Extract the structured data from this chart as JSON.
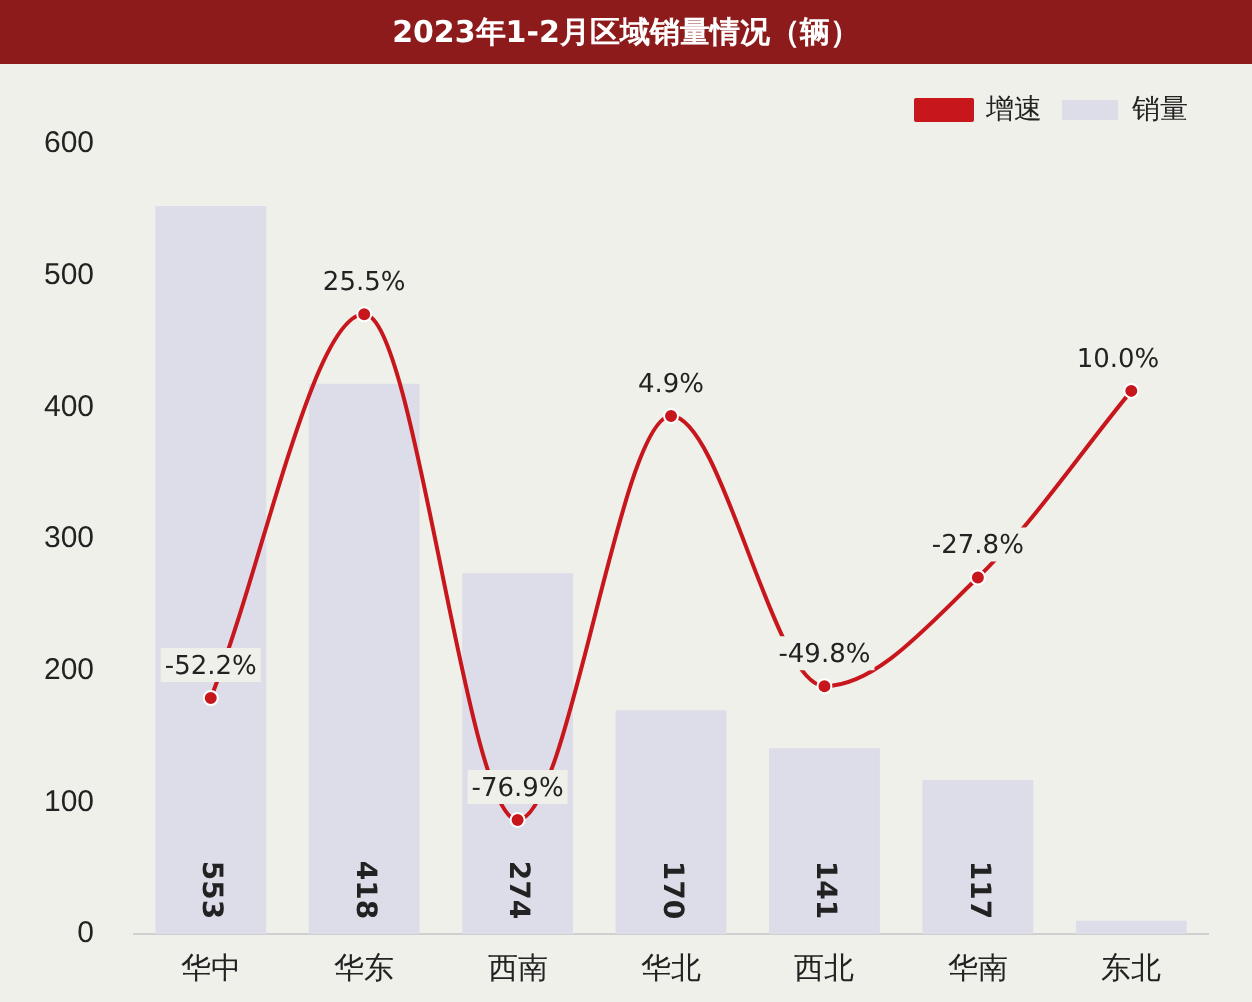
{
  "chart_data": {
    "type": "bar",
    "title": "2023年1-2月区域销量情况（辆）",
    "categories": [
      "华中",
      "华东",
      "西南",
      "华北",
      "西北",
      "华南",
      "东北"
    ],
    "series": [
      {
        "name": "销量",
        "color": "#dcdde8",
        "values": [
          553,
          418,
          274,
          170,
          141,
          117,
          10
        ],
        "value_labels": [
          "553",
          "418",
          "274",
          "170",
          "141",
          "117",
          null
        ]
      },
      {
        "name": "增速",
        "type": "line",
        "axis": "y2",
        "color": "#c8161d",
        "values": [
          -52.2,
          25.5,
          -76.9,
          4.9,
          -49.8,
          -27.8,
          10.0
        ],
        "value_labels": [
          "-52.2%",
          "25.5%",
          "-76.9%",
          "4.9%",
          "-49.8%",
          "-27.8%",
          "10.0%"
        ]
      }
    ],
    "ylim": [
      0,
      600
    ],
    "yticks": [
      0,
      100,
      200,
      300,
      400,
      500,
      600
    ],
    "grid": false,
    "legend": "top right",
    "marker": "circle",
    "line_style": "solid"
  }
}
